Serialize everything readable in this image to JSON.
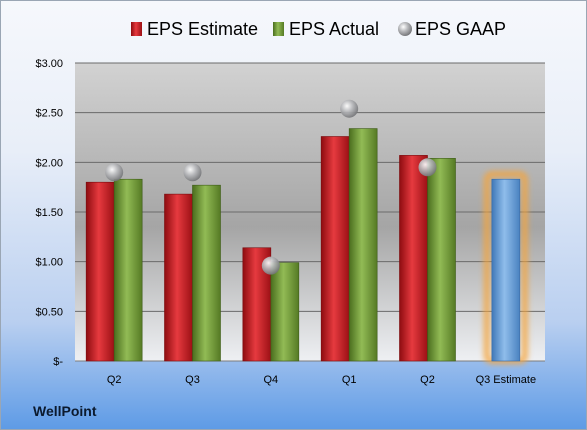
{
  "company_label": "WellPoint",
  "chart_data": {
    "type": "bar",
    "categories": [
      "Q2",
      "Q3",
      "Q4",
      "Q1",
      "Q2",
      "Q3 Estimate"
    ],
    "series": [
      {
        "name": "EPS Estimate",
        "color": "#c8161d",
        "values": [
          1.8,
          1.68,
          1.14,
          2.26,
          2.07,
          null
        ]
      },
      {
        "name": "EPS Actual",
        "color": "#6e9a32",
        "values": [
          1.83,
          1.77,
          0.99,
          2.34,
          2.04,
          null
        ]
      },
      {
        "name": "EPS GAAP",
        "color": "#a9aaac",
        "marker": "sphere",
        "values": [
          1.9,
          1.9,
          0.96,
          2.54,
          1.95,
          null
        ]
      },
      {
        "name": "",
        "color": "#6fa6de",
        "highlight": "#f5a53c",
        "values": [
          null,
          null,
          null,
          null,
          null,
          1.83
        ]
      }
    ],
    "yticks": [
      "$3.00",
      "$2.50",
      "$2.00",
      "$1.50",
      "$1.00",
      "$0.50",
      "$-"
    ],
    "ylim": [
      0,
      3
    ],
    "grid": true,
    "legend": "top"
  }
}
